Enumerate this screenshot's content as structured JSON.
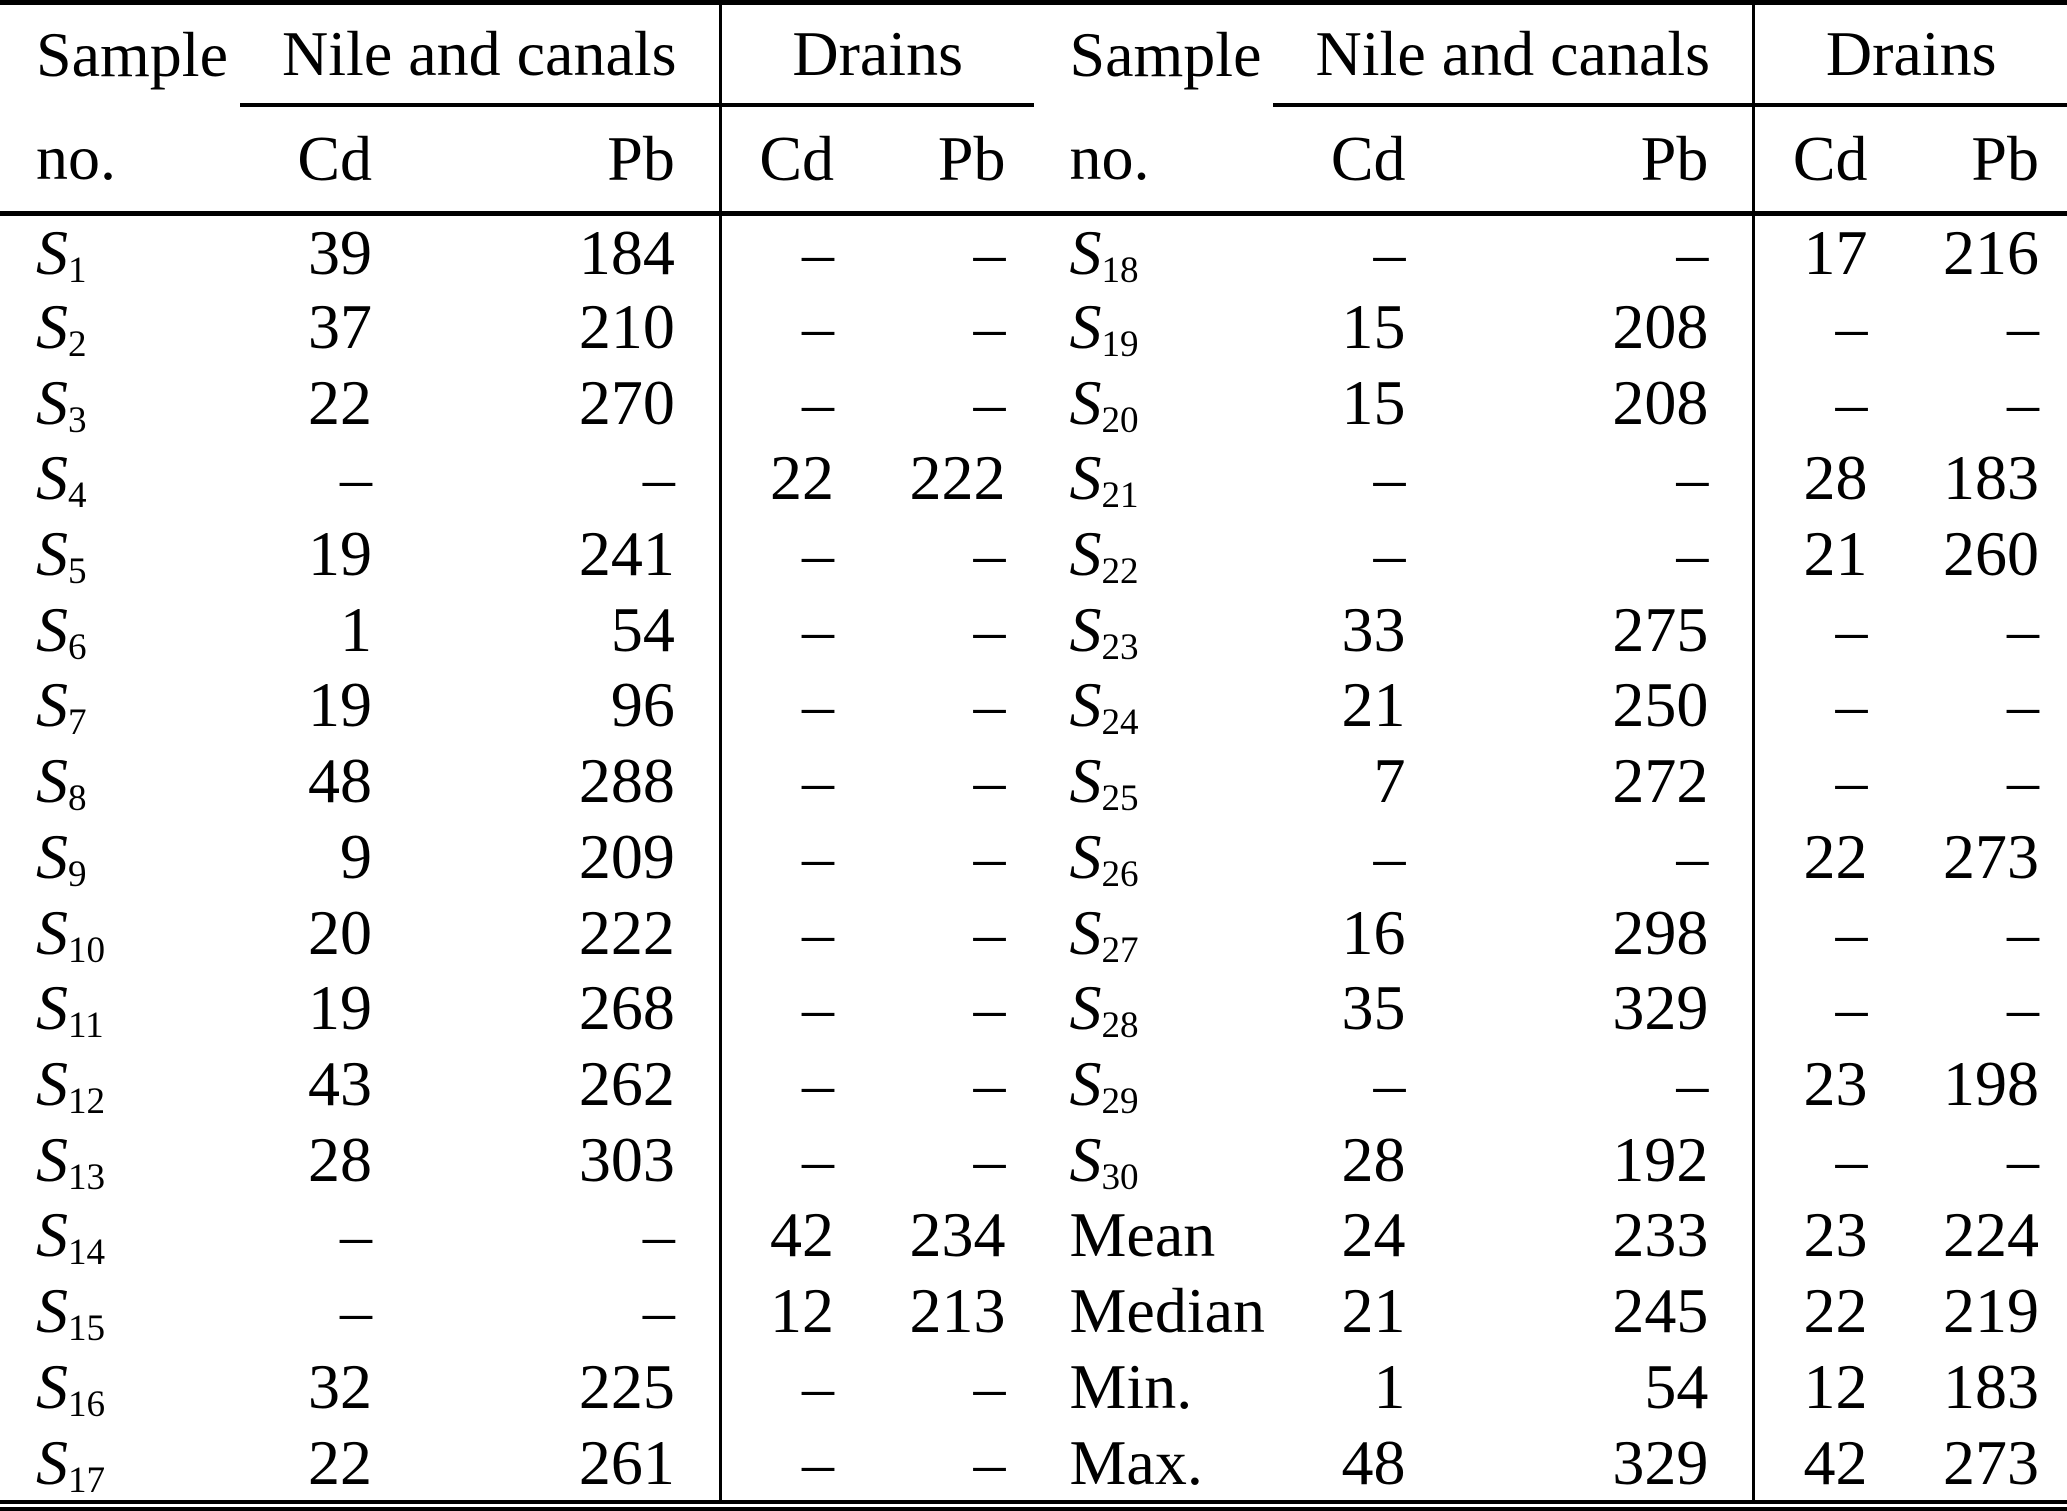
{
  "page": {
    "background": "#ffffff",
    "text_color": "#000000",
    "rule_color": "#000000"
  },
  "header": {
    "sample_top": "Sample",
    "sample_bottom": "no.",
    "group_nile": "Nile and canals",
    "group_drains": "Drains",
    "subcolumns": [
      "Cd",
      "Pb",
      "Cd",
      "Pb"
    ]
  },
  "missing_value_marker": "–",
  "halves": [
    {
      "rows": [
        {
          "label": "S",
          "sub": "1",
          "values": [
            "39",
            "184",
            "–",
            "–"
          ]
        },
        {
          "label": "S",
          "sub": "2",
          "values": [
            "37",
            "210",
            "–",
            "–"
          ]
        },
        {
          "label": "S",
          "sub": "3",
          "values": [
            "22",
            "270",
            "–",
            "–"
          ]
        },
        {
          "label": "S",
          "sub": "4",
          "values": [
            "–",
            "–",
            "22",
            "222"
          ]
        },
        {
          "label": "S",
          "sub": "5",
          "values": [
            "19",
            "241",
            "–",
            "–"
          ]
        },
        {
          "label": "S",
          "sub": "6",
          "values": [
            "1",
            "54",
            "–",
            "–"
          ]
        },
        {
          "label": "S",
          "sub": "7",
          "values": [
            "19",
            "96",
            "–",
            "–"
          ]
        },
        {
          "label": "S",
          "sub": "8",
          "values": [
            "48",
            "288",
            "–",
            "–"
          ]
        },
        {
          "label": "S",
          "sub": "9",
          "values": [
            "9",
            "209",
            "–",
            "–"
          ]
        },
        {
          "label": "S",
          "sub": "10",
          "values": [
            "20",
            "222",
            "–",
            "–"
          ]
        },
        {
          "label": "S",
          "sub": "11",
          "values": [
            "19",
            "268",
            "–",
            "–"
          ]
        },
        {
          "label": "S",
          "sub": "12",
          "values": [
            "43",
            "262",
            "–",
            "–"
          ]
        },
        {
          "label": "S",
          "sub": "13",
          "values": [
            "28",
            "303",
            "–",
            "–"
          ]
        },
        {
          "label": "S",
          "sub": "14",
          "values": [
            "–",
            "–",
            "42",
            "234"
          ]
        },
        {
          "label": "S",
          "sub": "15",
          "values": [
            "–",
            "–",
            "12",
            "213"
          ]
        },
        {
          "label": "S",
          "sub": "16",
          "values": [
            "32",
            "225",
            "–",
            "–"
          ]
        },
        {
          "label": "S",
          "sub": "17",
          "values": [
            "22",
            "261",
            "–",
            "–"
          ]
        }
      ]
    },
    {
      "rows": [
        {
          "label": "S",
          "sub": "18",
          "values": [
            "–",
            "–",
            "17",
            "216"
          ]
        },
        {
          "label": "S",
          "sub": "19",
          "values": [
            "15",
            "208",
            "–",
            "–"
          ]
        },
        {
          "label": "S",
          "sub": "20",
          "values": [
            "15",
            "208",
            "–",
            "–"
          ]
        },
        {
          "label": "S",
          "sub": "21",
          "values": [
            "–",
            "–",
            "28",
            "183"
          ]
        },
        {
          "label": "S",
          "sub": "22",
          "values": [
            "–",
            "–",
            "21",
            "260"
          ]
        },
        {
          "label": "S",
          "sub": "23",
          "values": [
            "33",
            "275",
            "–",
            "–"
          ]
        },
        {
          "label": "S",
          "sub": "24",
          "values": [
            "21",
            "250",
            "–",
            "–"
          ]
        },
        {
          "label": "S",
          "sub": "25",
          "values": [
            "7",
            "272",
            "–",
            "–"
          ]
        },
        {
          "label": "S",
          "sub": "26",
          "values": [
            "–",
            "–",
            "22",
            "273"
          ]
        },
        {
          "label": "S",
          "sub": "27",
          "values": [
            "16",
            "298",
            "–",
            "–"
          ]
        },
        {
          "label": "S",
          "sub": "28",
          "values": [
            "35",
            "329",
            "–",
            "–"
          ]
        },
        {
          "label": "S",
          "sub": "29",
          "values": [
            "–",
            "–",
            "23",
            "198"
          ]
        },
        {
          "label": "S",
          "sub": "30",
          "values": [
            "28",
            "192",
            "–",
            "–"
          ]
        },
        {
          "label": "Mean",
          "sub": "",
          "values": [
            "24",
            "233",
            "23",
            "224"
          ]
        },
        {
          "label": "Median",
          "sub": "",
          "values": [
            "21",
            "245",
            "22",
            "219"
          ]
        },
        {
          "label": "Min.",
          "sub": "",
          "values": [
            "1",
            "54",
            "12",
            "183"
          ]
        },
        {
          "label": "Max.",
          "sub": "",
          "values": [
            "48",
            "329",
            "42",
            "273"
          ]
        }
      ]
    }
  ]
}
